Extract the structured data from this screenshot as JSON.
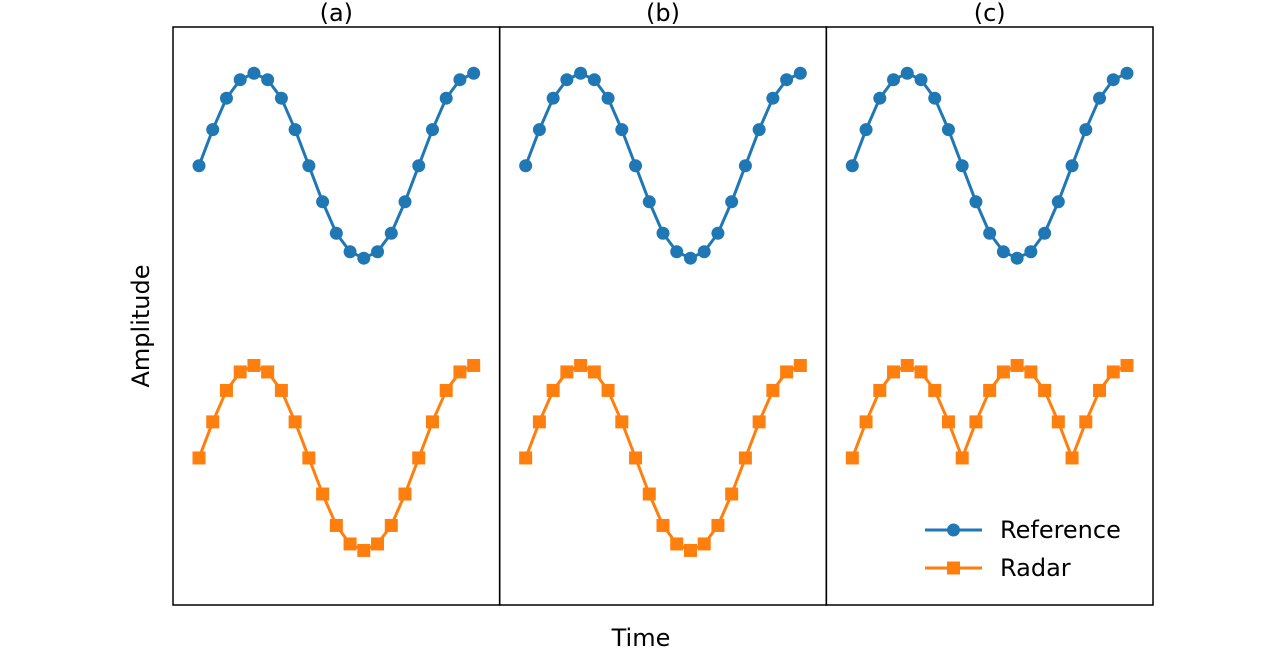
{
  "figure": {
    "xlabel": "Time",
    "ylabel": "Amplitude"
  },
  "legend": {
    "placement": "bottom-right of panel (c)",
    "entries": [
      {
        "label": "Reference",
        "color": "#1f77b4",
        "marker": "circle"
      },
      {
        "label": "Radar",
        "color": "#ff7f0e",
        "marker": "square"
      }
    ]
  },
  "chart_data": [
    {
      "type": "line",
      "title": "(a)",
      "x": [
        0,
        1,
        2,
        3,
        4,
        5,
        6,
        7,
        8,
        9,
        10,
        11,
        12,
        13,
        14,
        15,
        16,
        17,
        18,
        19,
        20
      ],
      "ylim": [
        -4.75,
        1.5
      ],
      "grid": false,
      "series": [
        {
          "name": "Reference",
          "color": "#1f77b4",
          "marker": "circle",
          "values": [
            0,
            0.39,
            0.73,
            0.93,
            1.0,
            0.93,
            0.73,
            0.39,
            0.0,
            -0.39,
            -0.73,
            -0.93,
            -1.0,
            -0.93,
            -0.73,
            -0.39,
            0.0,
            0.39,
            0.73,
            0.93,
            1.0
          ]
        },
        {
          "name": "Radar",
          "color": "#ff7f0e",
          "marker": "square",
          "values": [
            -3.16,
            -2.77,
            -2.43,
            -2.23,
            -2.16,
            -2.23,
            -2.43,
            -2.77,
            -3.16,
            -3.55,
            -3.89,
            -4.09,
            -4.16,
            -4.09,
            -3.89,
            -3.55,
            -3.16,
            -2.77,
            -2.43,
            -2.23,
            -2.16
          ]
        }
      ]
    },
    {
      "type": "line",
      "title": "(b)",
      "x": [
        0,
        1,
        2,
        3,
        4,
        5,
        6,
        7,
        8,
        9,
        10,
        11,
        12,
        13,
        14,
        15,
        16,
        17,
        18,
        19,
        20
      ],
      "ylim": [
        -4.75,
        1.5
      ],
      "grid": false,
      "series": [
        {
          "name": "Reference",
          "color": "#1f77b4",
          "marker": "circle",
          "values": [
            0,
            0.39,
            0.73,
            0.93,
            1.0,
            0.93,
            0.73,
            0.39,
            0.0,
            -0.39,
            -0.73,
            -0.93,
            -1.0,
            -0.93,
            -0.73,
            -0.39,
            0.0,
            0.39,
            0.73,
            0.93,
            1.0
          ]
        },
        {
          "name": "Radar",
          "color": "#ff7f0e",
          "marker": "square",
          "values": [
            -3.16,
            -2.77,
            -2.43,
            -2.23,
            -2.16,
            -2.23,
            -2.43,
            -2.77,
            -3.16,
            -3.55,
            -3.89,
            -4.09,
            -4.16,
            -4.09,
            -3.89,
            -3.55,
            -3.16,
            -2.77,
            -2.43,
            -2.23,
            -2.16
          ]
        }
      ]
    },
    {
      "type": "line",
      "title": "(c)",
      "x": [
        0,
        1,
        2,
        3,
        4,
        5,
        6,
        7,
        8,
        9,
        10,
        11,
        12,
        13,
        14,
        15,
        16,
        17,
        18,
        19,
        20
      ],
      "ylim": [
        -4.75,
        1.5
      ],
      "grid": false,
      "series": [
        {
          "name": "Reference",
          "color": "#1f77b4",
          "marker": "circle",
          "values": [
            0,
            0.39,
            0.73,
            0.93,
            1.0,
            0.93,
            0.73,
            0.39,
            0.0,
            -0.39,
            -0.73,
            -0.93,
            -1.0,
            -0.93,
            -0.73,
            -0.39,
            0.0,
            0.39,
            0.73,
            0.93,
            1.0
          ]
        },
        {
          "name": "Radar",
          "color": "#ff7f0e",
          "marker": "square",
          "values": [
            -3.16,
            -2.77,
            -2.43,
            -2.23,
            -2.16,
            -2.23,
            -2.43,
            -2.77,
            -3.16,
            -2.77,
            -2.43,
            -2.23,
            -2.16,
            -2.23,
            -2.43,
            -2.77,
            -3.16,
            -2.77,
            -2.43,
            -2.23,
            -2.16
          ]
        }
      ]
    }
  ]
}
